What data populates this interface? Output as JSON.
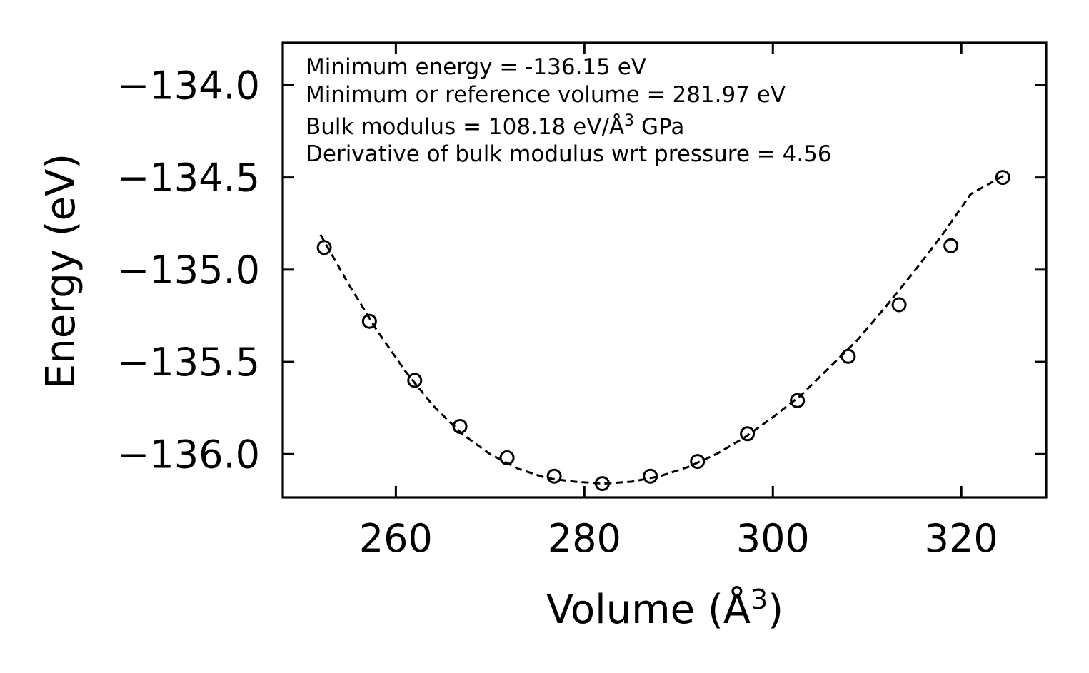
{
  "chart_data": {
    "type": "scatter",
    "xlabel": "Volume (Å",
    "xlabel_sup": "3",
    "xlabel_close": ")",
    "ylabel": "Energy (eV)",
    "xlim": [
      248,
      329
    ],
    "ylim": [
      -136.235,
      -133.77
    ],
    "xticks": [
      260,
      280,
      300,
      320
    ],
    "xtick_labels": [
      "260",
      "280",
      "300",
      "320"
    ],
    "yticks": [
      -134.0,
      -134.5,
      -135.0,
      -135.5,
      -136.0
    ],
    "ytick_labels": [
      "−134.0",
      "−134.5",
      "−135.0",
      "−135.5",
      "−136.0"
    ],
    "series": [
      {
        "name": "data",
        "style": "open-circle",
        "x": [
          252.4,
          257.2,
          262.0,
          266.8,
          271.8,
          276.8,
          281.9,
          287.0,
          292.0,
          297.3,
          302.6,
          308.0,
          313.4,
          318.9,
          324.4
        ],
        "y": [
          -134.88,
          -135.28,
          -135.6,
          -135.85,
          -136.02,
          -136.12,
          -136.16,
          -136.12,
          -136.04,
          -135.89,
          -135.71,
          -135.47,
          -135.19,
          -134.87,
          -134.5
        ]
      },
      {
        "name": "fit",
        "style": "dashed-line",
        "x": [
          252.0,
          255.0,
          258.0,
          261.0,
          264.0,
          267.0,
          270.0,
          273.0,
          276.0,
          279.0,
          282.0,
          285.0,
          288.0,
          291.0,
          294.0,
          297.0,
          300.0,
          303.0,
          306.0,
          309.0,
          312.0,
          315.0,
          318.0,
          321.0,
          324.5
        ],
        "y": [
          -134.81,
          -135.08,
          -135.33,
          -135.55,
          -135.74,
          -135.89,
          -136.0,
          -136.08,
          -136.13,
          -136.15,
          -136.16,
          -136.15,
          -136.12,
          -136.07,
          -136.0,
          -135.91,
          -135.8,
          -135.68,
          -135.53,
          -135.38,
          -135.2,
          -135.01,
          -134.81,
          -134.59,
          -134.49
        ]
      }
    ],
    "annotations": {
      "line1": "Minimum energy = -136.15 eV",
      "line2": "Minimum or reference volume = 281.97 eV",
      "line3_pre": "Bulk modulus = 108.18 eV/Å",
      "line3_sup": "3",
      "line3_post": " GPa",
      "line4": "Derivative of bulk modulus wrt pressure = 4.56"
    },
    "grid": false,
    "legend": "none"
  }
}
